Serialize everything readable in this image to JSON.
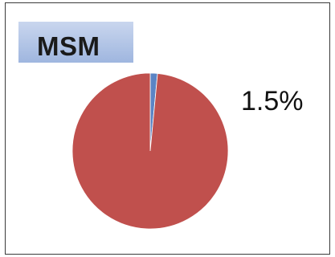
{
  "chart_data": {
    "type": "pie",
    "title": "MSM",
    "slices": [
      {
        "value": 1.5,
        "color": "#5b84c4"
      },
      {
        "value": 98.5,
        "color": "#c0504d"
      }
    ],
    "data_labels": [
      "1.5%"
    ]
  }
}
